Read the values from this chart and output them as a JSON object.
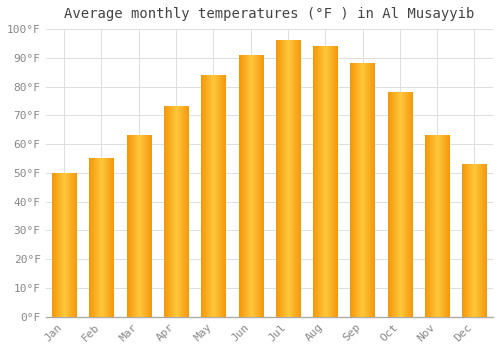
{
  "title": "Average monthly temperatures (°F ) in Al Musayyib",
  "months": [
    "Jan",
    "Feb",
    "Mar",
    "Apr",
    "May",
    "Jun",
    "Jul",
    "Aug",
    "Sep",
    "Oct",
    "Nov",
    "Dec"
  ],
  "values": [
    50,
    55,
    63,
    73,
    84,
    91,
    96,
    94,
    88,
    78,
    63,
    53
  ],
  "bar_color_center": "#FFCC44",
  "bar_color_edge": "#F5960A",
  "background_color": "#FFFFFF",
  "grid_color": "#DDDDDD",
  "ylim": [
    0,
    100
  ],
  "yticks": [
    0,
    10,
    20,
    30,
    40,
    50,
    60,
    70,
    80,
    90,
    100
  ],
  "ytick_labels": [
    "0°F",
    "10°F",
    "20°F",
    "30°F",
    "40°F",
    "50°F",
    "60°F",
    "70°F",
    "80°F",
    "90°F",
    "100°F"
  ],
  "title_fontsize": 10,
  "tick_fontsize": 8,
  "tick_color": "#888888",
  "font_family": "monospace",
  "bar_width": 0.65
}
